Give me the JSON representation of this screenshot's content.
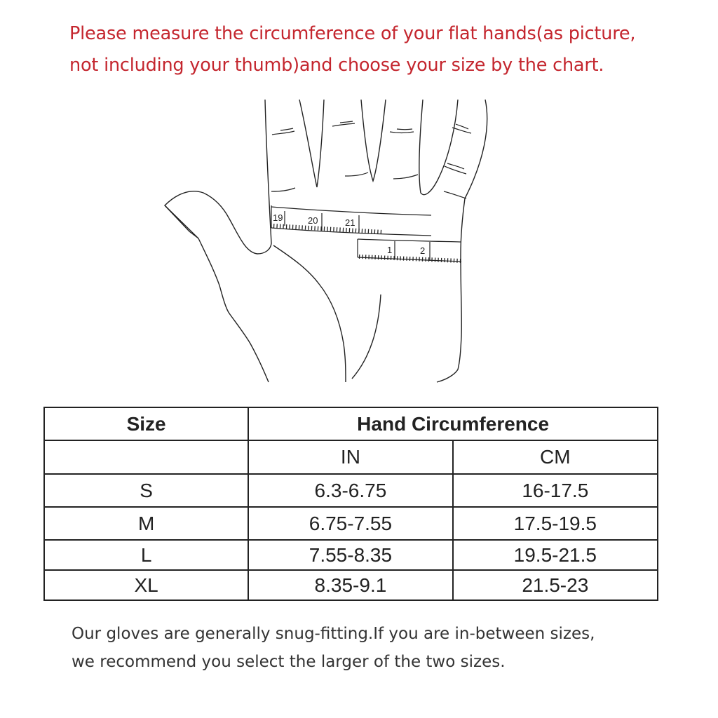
{
  "instruction": {
    "lines": [
      "Please measure the circumference of your flat hands(as picture,",
      "not including your thumb)and choose your size by the chart."
    ],
    "color": "#c4262e"
  },
  "illustration": {
    "tape_upper_labels": [
      "19",
      "20",
      "21"
    ],
    "tape_lower_labels": [
      "1",
      "2"
    ]
  },
  "size_table": {
    "header_size": "Size",
    "header_measure": "Hand Circumference",
    "sub_in": "IN",
    "sub_cm": "CM",
    "rows": [
      {
        "size": "S",
        "in": "6.3-6.75",
        "cm": "16-17.5"
      },
      {
        "size": "M",
        "in": "6.75-7.55",
        "cm": "17.5-19.5"
      },
      {
        "size": "L",
        "in": "7.55-8.35",
        "cm": "19.5-21.5"
      },
      {
        "size": "XL",
        "in": "8.35-9.1",
        "cm": "21.5-23"
      }
    ]
  },
  "note": {
    "lines": [
      "Our gloves are generally snug-fitting.If you are in-between sizes,",
      "we recommend you select the larger of the two sizes."
    ]
  }
}
